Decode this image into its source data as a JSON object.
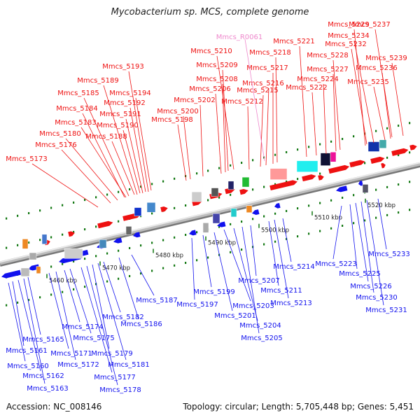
{
  "title": "Mycobacterium sp. MCS, complete genome",
  "footer": {
    "accession": "Accession: NC_008146",
    "summary": "Topology: circular; Length: 5,705,448 bp; Genes: 5,451"
  },
  "colors": {
    "forward": "#ee1111",
    "reverse": "#1111ee",
    "rna": "#ee88cc",
    "backbone": "#999999",
    "tick": "#117711"
  },
  "kbp_ticks": [
    "5460 kbp",
    "5470 kbp",
    "5480 kbp",
    "5490 kbp",
    "5500 kbp",
    "5510 kbp",
    "5520 kbp"
  ],
  "genes_forward": [
    "Mmcs_5173",
    "Mmcs_5176",
    "Mmcs_5180",
    "Mmcs_5183",
    "Mmcs_5184",
    "Mmcs_5185",
    "Mmcs_5188",
    "Mmcs_5189",
    "Mmcs_5190",
    "Mmcs_5191",
    "Mmcs_5192",
    "Mmcs_5193",
    "Mmcs_5194",
    "Mmcs_5198",
    "Mmcs_5200",
    "Mmcs_5202",
    "Mmcs_5206",
    "Mmcs_5208",
    "Mmcs_5209",
    "Mmcs_5210",
    "Mmcs_5212",
    "Mmcs_5215",
    "Mmcs_5216",
    "Mmcs_5217",
    "Mmcs_5218",
    "Mmcs_5221",
    "Mmcs_5222",
    "Mmcs_5224",
    "Mmcs_5227",
    "Mmcs_5228",
    "Mmcs_5229",
    "Mmcs_5232",
    "Mmcs_5234",
    "Mmcs_5235",
    "Mmcs_5236",
    "Mmcs_5237",
    "Mmcs_5239"
  ],
  "genes_rna": [
    "Mmcs_R0061"
  ],
  "genes_reverse": [
    "Mmcs_5160",
    "Mmcs_5161",
    "Mmcs_5162",
    "Mmcs_5163",
    "Mmcs_5165",
    "Mmcs_5171",
    "Mmcs_5172",
    "Mmcs_5174",
    "Mmcs_5175",
    "Mmcs_5177",
    "Mmcs_5178",
    "Mmcs_5179",
    "Mmcs_5181",
    "Mmcs_5182",
    "Mmcs_5186",
    "Mmcs_5187",
    "Mmcs_5197",
    "Mmcs_5199",
    "Mmcs_5201",
    "Mmcs_5203",
    "Mmcs_5204",
    "Mmcs_5205",
    "Mmcs_5207",
    "Mmcs_5211",
    "Mmcs_5213",
    "Mmcs_5214",
    "Mmcs_5223",
    "Mmcs_5225",
    "Mmcs_5226",
    "Mmcs_5230",
    "Mmcs_5231",
    "Mmcs_5233"
  ]
}
